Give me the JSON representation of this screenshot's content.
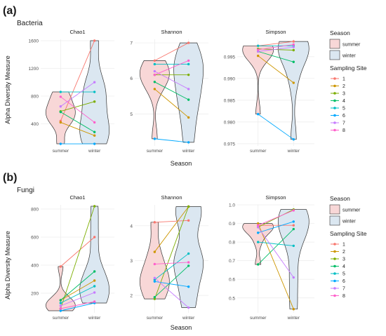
{
  "figure": {
    "panel_a_tag": "(a)",
    "panel_b_tag": "(b)",
    "panel_a_title": "Bacteria",
    "panel_b_title": "Fungi",
    "ylabel": "Alpha Diversity Measure",
    "xlabel": "Season"
  },
  "legend": {
    "season_title": "Season",
    "season_items": [
      "summer",
      "winter"
    ],
    "site_title": "Sampling Site",
    "site_items": [
      "1",
      "2",
      "3",
      "4",
      "5",
      "6",
      "7",
      "8"
    ]
  },
  "colors": {
    "summer_fill": "#f8d7d7",
    "winter_fill": "#dbe7f1",
    "sites": [
      "#f8766d",
      "#cd9600",
      "#7cae00",
      "#00be67",
      "#00bfc4",
      "#00a9ff",
      "#c77cff",
      "#ff61cc"
    ]
  },
  "chart_data": [
    {
      "type": "violin",
      "panel": "a",
      "title": "Chao1",
      "categories": [
        "summer",
        "winter"
      ],
      "ylim": [
        80,
        1620
      ],
      "yticks": [
        400,
        800,
        1200,
        1600
      ],
      "series": [
        {
          "name": "1",
          "values": [
            440,
            1600
          ]
        },
        {
          "name": "2",
          "values": [
            420,
            230
          ]
        },
        {
          "name": "3",
          "values": [
            580,
            720
          ]
        },
        {
          "name": "4",
          "values": [
            570,
            280
          ]
        },
        {
          "name": "5",
          "values": [
            860,
            860
          ]
        },
        {
          "name": "6",
          "values": [
            110,
            110
          ]
        },
        {
          "name": "7",
          "values": [
            650,
            1000
          ]
        },
        {
          "name": "8",
          "values": [
            790,
            420
          ]
        }
      ]
    },
    {
      "type": "violin",
      "panel": "a",
      "title": "Shannon",
      "categories": [
        "summer",
        "winter"
      ],
      "ylim": [
        4.1,
        7.1
      ],
      "yticks": [
        5,
        6,
        7
      ],
      "series": [
        {
          "name": "1",
          "values": [
            6.5,
            7.0
          ]
        },
        {
          "name": "2",
          "values": [
            5.7,
            4.9
          ]
        },
        {
          "name": "3",
          "values": [
            6.1,
            6.1
          ]
        },
        {
          "name": "4",
          "values": [
            5.9,
            5.4
          ]
        },
        {
          "name": "5",
          "values": [
            6.4,
            6.4
          ]
        },
        {
          "name": "6",
          "values": [
            4.3,
            4.2
          ]
        },
        {
          "name": "7",
          "values": [
            6.2,
            5.7
          ]
        },
        {
          "name": "8",
          "values": [
            6.1,
            6.5
          ]
        }
      ]
    },
    {
      "type": "violin",
      "panel": "a",
      "title": "Simpson",
      "categories": [
        "summer",
        "winter"
      ],
      "ylim": [
        0.9745,
        0.999
      ],
      "yticks": [
        0.975,
        0.98,
        0.985,
        0.99,
        0.995
      ],
      "series": [
        {
          "name": "1",
          "values": [
            0.9975,
            0.9985
          ]
        },
        {
          "name": "2",
          "values": [
            0.9952,
            0.989
          ]
        },
        {
          "name": "3",
          "values": [
            0.9968,
            0.9965
          ]
        },
        {
          "name": "4",
          "values": [
            0.9962,
            0.9938
          ]
        },
        {
          "name": "5",
          "values": [
            0.9975,
            0.9975
          ]
        },
        {
          "name": "6",
          "values": [
            0.9818,
            0.976
          ]
        },
        {
          "name": "7",
          "values": [
            0.9962,
            0.9972
          ]
        },
        {
          "name": "8",
          "values": [
            0.9966,
            0.9978
          ]
        }
      ]
    },
    {
      "type": "violin",
      "panel": "b",
      "title": "Chao1",
      "categories": [
        "summer",
        "winter"
      ],
      "ylim": [
        60,
        830
      ],
      "yticks": [
        200,
        400,
        600,
        800
      ],
      "series": [
        {
          "name": "1",
          "values": [
            390,
            600
          ]
        },
        {
          "name": "2",
          "values": [
            150,
            290
          ]
        },
        {
          "name": "3",
          "values": [
            90,
            820
          ]
        },
        {
          "name": "4",
          "values": [
            150,
            355
          ]
        },
        {
          "name": "5",
          "values": [
            130,
            250
          ]
        },
        {
          "name": "6",
          "values": [
            75,
            130
          ]
        },
        {
          "name": "7",
          "values": [
            110,
            205
          ]
        },
        {
          "name": "8",
          "values": [
            90,
            140
          ]
        }
      ]
    },
    {
      "type": "violin",
      "panel": "b",
      "title": "Shannon",
      "categories": [
        "summer",
        "winter"
      ],
      "ylim": [
        1.5,
        4.6
      ],
      "yticks": [
        2,
        3,
        4
      ],
      "series": [
        {
          "name": "1",
          "values": [
            4.1,
            4.15
          ]
        },
        {
          "name": "2",
          "values": [
            3.25,
            4.55
          ]
        },
        {
          "name": "3",
          "values": [
            1.9,
            4.55
          ]
        },
        {
          "name": "4",
          "values": [
            1.95,
            2.85
          ]
        },
        {
          "name": "5",
          "values": [
            2.45,
            3.2
          ]
        },
        {
          "name": "6",
          "values": [
            2.4,
            2.25
          ]
        },
        {
          "name": "7",
          "values": [
            2.5,
            1.65
          ]
        },
        {
          "name": "8",
          "values": [
            2.9,
            2.95
          ]
        }
      ]
    },
    {
      "type": "violin",
      "panel": "b",
      "title": "Simpson",
      "categories": [
        "summer",
        "winter"
      ],
      "ylim": [
        0.42,
        1.0
      ],
      "yticks": [
        0.5,
        0.6,
        0.7,
        0.8,
        0.9,
        1.0
      ],
      "series": [
        {
          "name": "1",
          "values": [
            0.89,
            0.89
          ]
        },
        {
          "name": "2",
          "values": [
            0.9,
            0.44
          ]
        },
        {
          "name": "3",
          "values": [
            0.88,
            0.975
          ]
        },
        {
          "name": "4",
          "values": [
            0.68,
            0.87
          ]
        },
        {
          "name": "5",
          "values": [
            0.8,
            0.78
          ]
        },
        {
          "name": "6",
          "values": [
            0.85,
            0.91
          ]
        },
        {
          "name": "7",
          "values": [
            0.88,
            0.61
          ]
        },
        {
          "name": "8",
          "values": [
            0.89,
            0.97
          ]
        }
      ]
    }
  ]
}
